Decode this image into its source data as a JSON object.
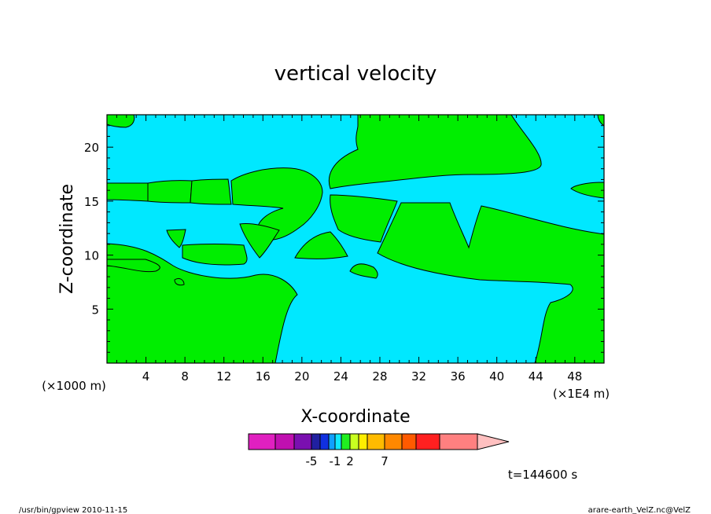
{
  "chart_data": {
    "type": "heatmap",
    "title": "vertical velocity",
    "xlabel": "X-coordinate",
    "ylabel": "Z-coordinate",
    "x_unit_left": "(×1000 m)",
    "x_unit_right": "(×1E4 m)",
    "xlim": [
      0,
      51
    ],
    "ylim": [
      0,
      23
    ],
    "x_ticks": [
      4,
      8,
      12,
      16,
      20,
      24,
      28,
      32,
      36,
      40,
      44,
      48
    ],
    "y_ticks": [
      5,
      10,
      15,
      20
    ],
    "x_tick_labels": [
      "4",
      "8",
      "12",
      "16",
      "20",
      "24",
      "28",
      "32",
      "36",
      "40",
      "44",
      "48"
    ],
    "y_tick_labels": [
      "5",
      "10",
      "15",
      "20"
    ],
    "time_label": "t=144600 s",
    "shown_levels": [
      "cyan",
      "green"
    ],
    "colorbar": {
      "colors": [
        "#e020c0",
        "#c010b0",
        "#7a10b0",
        "#2020a0",
        "#1030e0",
        "#10a0ff",
        "#10e8ff",
        "#20ee20",
        "#c8ff20",
        "#ffee00",
        "#ffbb00",
        "#ff8800",
        "#ff5a00",
        "#ff2020",
        "#ff8080"
      ],
      "tick_labels": [
        {
          "label": "-5",
          "after_box": 3
        },
        {
          "label": "-1",
          "after_box": 6
        },
        {
          "label": "2",
          "after_box": 8
        },
        {
          "label": "7",
          "after_box": 11
        }
      ],
      "arrow_color": "#ffc0c0"
    },
    "colors": {
      "cyan": "#00e8ff",
      "green": "#00ee00"
    }
  },
  "footer": {
    "left": "/usr/bin/gpview   2010-11-15",
    "right": "arare-earth_VelZ.nc@VelZ"
  }
}
